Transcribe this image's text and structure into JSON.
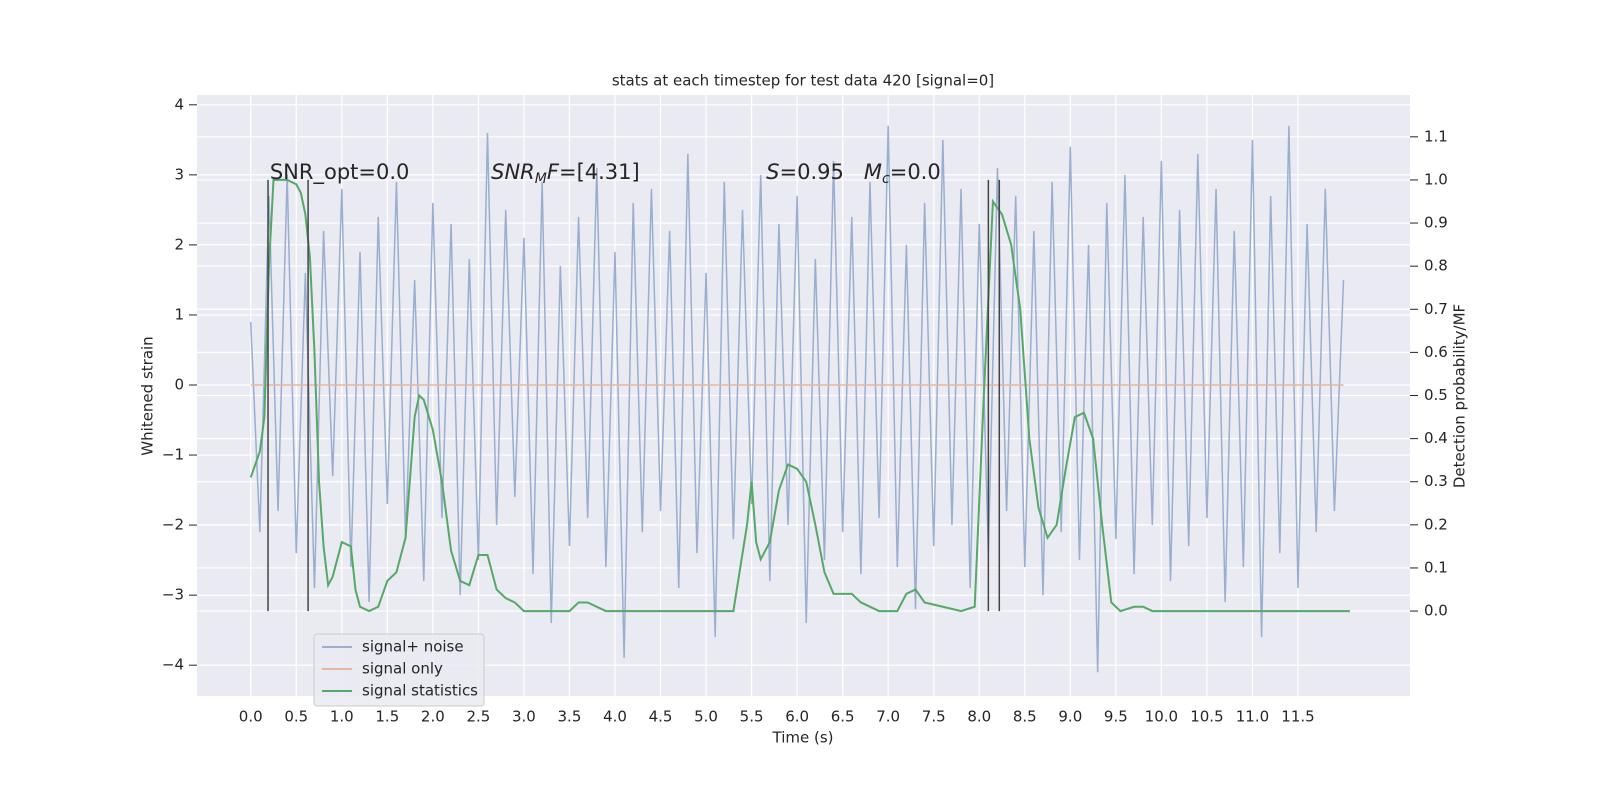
{
  "chart_data": {
    "type": "line",
    "title": "stats at each timestep for test data 420 [signal=0]",
    "xlabel": "Time (s)",
    "ylabel": "Whitened strain",
    "y2label": "Detection probability/MF",
    "xlim": [
      -0.59,
      12.73
    ],
    "ylim": [
      -4.44,
      4.14
    ],
    "y2lim": [
      -0.197,
      1.197
    ],
    "xticks": [
      {
        "value": 0,
        "label": "0.0"
      },
      {
        "value": 0.5,
        "label": "0.5"
      },
      {
        "value": 1,
        "label": "1.0"
      },
      {
        "value": 1.5,
        "label": "1.5"
      },
      {
        "value": 2,
        "label": "2.0"
      },
      {
        "value": 2.5,
        "label": "2.5"
      },
      {
        "value": 3,
        "label": "3.0"
      },
      {
        "value": 3.5,
        "label": "3.5"
      },
      {
        "value": 4,
        "label": "4.0"
      },
      {
        "value": 4.5,
        "label": "4.5"
      },
      {
        "value": 5,
        "label": "5.0"
      },
      {
        "value": 5.5,
        "label": "5.5"
      },
      {
        "value": 6,
        "label": "6.0"
      },
      {
        "value": 6.5,
        "label": "6.5"
      },
      {
        "value": 7,
        "label": "7.0"
      },
      {
        "value": 7.5,
        "label": "7.5"
      },
      {
        "value": 8,
        "label": "8.0"
      },
      {
        "value": 8.5,
        "label": "8.5"
      },
      {
        "value": 9,
        "label": "9.0"
      },
      {
        "value": 9.5,
        "label": "9.5"
      },
      {
        "value": 10,
        "label": "10.0"
      },
      {
        "value": 10.5,
        "label": "10.5"
      },
      {
        "value": 11,
        "label": "11.0"
      },
      {
        "value": 11.5,
        "label": "11.5"
      }
    ],
    "yticks": [
      {
        "value": -4,
        "label": "−4"
      },
      {
        "value": -3,
        "label": "−3"
      },
      {
        "value": -2,
        "label": "−2"
      },
      {
        "value": -1,
        "label": "−1"
      },
      0,
      1,
      2,
      3,
      4
    ],
    "y2ticks": [
      {
        "value": 0,
        "label": "0.0"
      },
      {
        "value": 0.1,
        "label": "0.1"
      },
      {
        "value": 0.2,
        "label": "0.2"
      },
      {
        "value": 0.3,
        "label": "0.3"
      },
      {
        "value": 0.4,
        "label": "0.4"
      },
      {
        "value": 0.5,
        "label": "0.5"
      },
      {
        "value": 0.6,
        "label": "0.6"
      },
      {
        "value": 0.7,
        "label": "0.7"
      },
      {
        "value": 0.8,
        "label": "0.8"
      },
      {
        "value": 0.9,
        "label": "0.9"
      },
      {
        "value": 1,
        "label": "1.0"
      },
      {
        "value": 1.1,
        "label": "1.1"
      }
    ],
    "grid": true,
    "legend": "lower left",
    "series": [
      {
        "name": "signal+ noise",
        "color": "#9aaecf",
        "axis": "y",
        "x": [
          0.0,
          0.1,
          0.2,
          0.3,
          0.4,
          0.5,
          0.6,
          0.7,
          0.8,
          0.9,
          1.0,
          1.1,
          1.2,
          1.3,
          1.4,
          1.5,
          1.6,
          1.7,
          1.8,
          1.9,
          2.0,
          2.1,
          2.2,
          2.3,
          2.4,
          2.5,
          2.6,
          2.7,
          2.8,
          2.9,
          3.0,
          3.1,
          3.2,
          3.3,
          3.4,
          3.5,
          3.6,
          3.7,
          3.8,
          3.9,
          4.0,
          4.1,
          4.2,
          4.3,
          4.4,
          4.5,
          4.6,
          4.7,
          4.8,
          4.9,
          5.0,
          5.1,
          5.2,
          5.3,
          5.4,
          5.5,
          5.6,
          5.7,
          5.8,
          5.9,
          6.0,
          6.1,
          6.2,
          6.3,
          6.4,
          6.5,
          6.6,
          6.7,
          6.8,
          6.9,
          7.0,
          7.1,
          7.2,
          7.3,
          7.4,
          7.5,
          7.6,
          7.7,
          7.8,
          7.9,
          8.0,
          8.1,
          8.2,
          8.3,
          8.4,
          8.5,
          8.6,
          8.7,
          8.8,
          8.9,
          9.0,
          9.1,
          9.2,
          9.3,
          9.4,
          9.5,
          9.6,
          9.7,
          9.8,
          9.9,
          10.0,
          10.1,
          10.2,
          10.3,
          10.4,
          10.5,
          10.6,
          10.7,
          10.8,
          10.9,
          11.0,
          11.1,
          11.2,
          11.3,
          11.4,
          11.5,
          11.6,
          11.7,
          11.8,
          11.9,
          12.0
        ],
        "values": [
          0.9,
          -2.1,
          2.7,
          -1.8,
          3.0,
          -2.4,
          1.6,
          -2.9,
          2.2,
          -1.3,
          2.8,
          -2.6,
          1.9,
          -3.1,
          2.4,
          -1.7,
          2.9,
          -2.2,
          1.5,
          -2.8,
          2.6,
          -1.9,
          2.3,
          -3.0,
          1.8,
          -2.5,
          3.6,
          -2.0,
          2.5,
          -1.6,
          2.1,
          -2.7,
          2.9,
          -3.4,
          1.7,
          -2.3,
          2.4,
          -1.9,
          3.1,
          -2.6,
          1.9,
          -3.9,
          2.6,
          -2.1,
          2.8,
          -1.8,
          2.2,
          -2.9,
          3.3,
          -2.4,
          1.6,
          -3.6,
          2.9,
          -2.2,
          2.5,
          -1.7,
          3.0,
          -2.8,
          2.3,
          -2.0,
          2.7,
          -3.4,
          1.8,
          -2.5,
          3.2,
          -2.1,
          2.4,
          -2.7,
          2.9,
          -1.9,
          3.7,
          -2.6,
          2.0,
          -3.2,
          2.6,
          -2.3,
          3.5,
          -2.0,
          2.8,
          -2.9,
          2.3,
          -2.4,
          3.1,
          -1.8,
          2.7,
          -2.6,
          2.2,
          -3.0,
          2.9,
          -2.1,
          3.4,
          -2.5,
          2.0,
          -4.1,
          2.6,
          -2.2,
          3.0,
          -2.7,
          2.4,
          -2.0,
          3.2,
          -2.8,
          2.5,
          -2.3,
          3.3,
          -1.9,
          2.8,
          -3.1,
          2.2,
          -2.6,
          3.5,
          -3.6,
          2.7,
          -2.4,
          3.7,
          -2.9,
          2.3,
          -2.1,
          2.8,
          -1.8,
          1.5
        ]
      },
      {
        "name": "signal only",
        "color": "#e5b6a2",
        "axis": "y",
        "x": [
          0.0,
          12.0
        ],
        "values": [
          0,
          0
        ]
      },
      {
        "name": "signal statistics",
        "color": "#55a868",
        "axis": "y2",
        "x": [
          0.0,
          0.1,
          0.15,
          0.2,
          0.25,
          0.3,
          0.4,
          0.5,
          0.55,
          0.6,
          0.65,
          0.7,
          0.75,
          0.8,
          0.85,
          0.9,
          1.0,
          1.1,
          1.15,
          1.2,
          1.3,
          1.4,
          1.5,
          1.6,
          1.7,
          1.8,
          1.85,
          1.9,
          2.0,
          2.1,
          2.2,
          2.3,
          2.4,
          2.5,
          2.6,
          2.7,
          2.8,
          2.9,
          3.0,
          3.2,
          3.5,
          3.6,
          3.7,
          3.9,
          4.5,
          5.0,
          5.3,
          5.45,
          5.5,
          5.55,
          5.6,
          5.7,
          5.8,
          5.9,
          6.0,
          6.1,
          6.2,
          6.3,
          6.4,
          6.5,
          6.6,
          6.7,
          6.9,
          7.1,
          7.2,
          7.3,
          7.4,
          7.6,
          7.8,
          7.95,
          8.05,
          8.15,
          8.25,
          8.35,
          8.45,
          8.55,
          8.65,
          8.75,
          8.85,
          8.95,
          9.05,
          9.15,
          9.25,
          9.35,
          9.45,
          9.55,
          9.7,
          9.8,
          9.9,
          10.0,
          11.0,
          12.07
        ],
        "values": [
          0.31,
          0.37,
          0.45,
          0.8,
          1.0,
          1.0,
          1.0,
          0.99,
          0.97,
          0.92,
          0.82,
          0.6,
          0.3,
          0.15,
          0.06,
          0.08,
          0.16,
          0.15,
          0.05,
          0.01,
          0.0,
          0.01,
          0.07,
          0.09,
          0.17,
          0.45,
          0.5,
          0.49,
          0.42,
          0.3,
          0.14,
          0.07,
          0.06,
          0.13,
          0.13,
          0.05,
          0.03,
          0.02,
          0.0,
          0.0,
          0.0,
          0.02,
          0.02,
          0.0,
          0.0,
          0.0,
          0.0,
          0.2,
          0.3,
          0.16,
          0.12,
          0.16,
          0.28,
          0.34,
          0.33,
          0.3,
          0.2,
          0.09,
          0.04,
          0.04,
          0.04,
          0.02,
          0.0,
          0.0,
          0.04,
          0.05,
          0.02,
          0.01,
          0.0,
          0.01,
          0.5,
          0.95,
          0.92,
          0.85,
          0.7,
          0.4,
          0.24,
          0.17,
          0.2,
          0.33,
          0.45,
          0.46,
          0.4,
          0.2,
          0.02,
          0.0,
          0.01,
          0.01,
          0.0,
          0.0,
          0.0,
          0.0
        ]
      }
    ],
    "vlines": {
      "x": [
        0.19,
        0.63,
        8.1,
        8.22
      ],
      "ymin": 0,
      "ymax": 1,
      "axis": "y2",
      "color": "#444444"
    },
    "annotations": [
      {
        "x": 0.21,
        "y": 3,
        "parts": [
          {
            "text": "SNR_opt=0.0"
          }
        ]
      },
      {
        "x": 2.64,
        "y": 3,
        "parts": [
          {
            "text": "SNR",
            "style": "italic"
          },
          {
            "text": "M",
            "style": "italic-sub"
          },
          {
            "text": "F",
            "style": "italic"
          },
          {
            "text": "=[4.31]"
          }
        ]
      },
      {
        "x": 5.66,
        "y": 3,
        "parts": [
          {
            "text": "S",
            "style": "italic"
          },
          {
            "text": "=0.95   "
          },
          {
            "text": "M",
            "style": "italic"
          },
          {
            "text": "c",
            "style": "italic-sub"
          },
          {
            "text": "=0.0"
          }
        ]
      }
    ]
  }
}
